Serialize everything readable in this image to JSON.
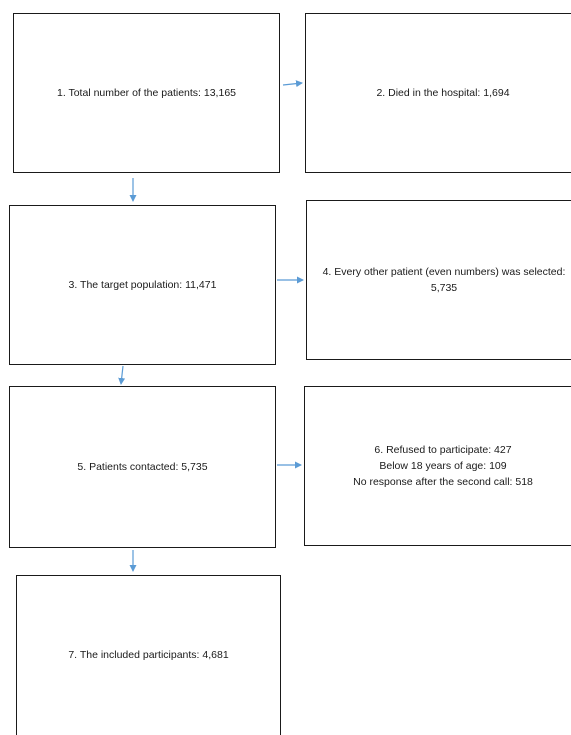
{
  "boxes": {
    "total_patients": "1. Total number of the patients: 13,165",
    "died": "2. Died in the hospital: 1,694",
    "target_population": "3. The target population: 11,471",
    "every_other": "4. Every other patient (even numbers) was selected: 5,735",
    "contacted": "5. Patients contacted: 5,735",
    "excluded": [
      "6. Refused to participate: 427",
      "Below 18 years of age: 109",
      "No response after the second call: 518"
    ],
    "included": "7. The included participants: 4,681"
  },
  "colors": {
    "arrow": "#5b9bd5",
    "border": "#1a1a1a"
  }
}
